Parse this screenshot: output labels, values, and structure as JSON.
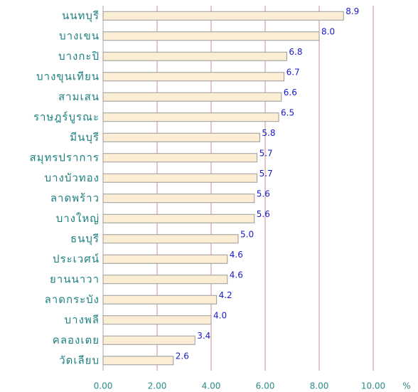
{
  "chart_data": {
    "type": "barh",
    "categories": [
      "นนทบุรี",
      "บางเขน",
      "บางกะปิ",
      "บางขุนเทียน",
      "สามเสน",
      "ราษฎร์บูรณะ",
      "มีนบุรี",
      "สมุทรปราการ",
      "บางบัวทอง",
      "ลาดพร้าว",
      "บางใหญ่",
      "ธนบุรี",
      "ประเวศน์",
      "ยานนาวา",
      "ลาดกระบัง",
      "บางพลี",
      "คลองเตย",
      "วัดเลียบ"
    ],
    "values": [
      8.9,
      8.0,
      6.8,
      6.7,
      6.6,
      6.5,
      5.8,
      5.7,
      5.7,
      5.6,
      5.6,
      5.0,
      4.6,
      4.6,
      4.2,
      4.0,
      3.4,
      2.6
    ],
    "value_labels": [
      "8.9",
      "8.0",
      "6.8",
      "6.7",
      "6.6",
      "6.5",
      "5.8",
      "5.7",
      "5.7",
      "5.6",
      "5.6",
      "5.0",
      "4.6",
      "4.6",
      "4.2",
      "4.0",
      "3.4",
      "2.6"
    ],
    "color": "#fbeed5",
    "xlabel": "%",
    "xlim": [
      0,
      10
    ],
    "xticks": [
      {
        "value": 0,
        "label": "0.00"
      },
      {
        "value": 2,
        "label": "2.00"
      },
      {
        "value": 4,
        "label": "4.00"
      },
      {
        "value": 6,
        "label": "6.00"
      },
      {
        "value": 8,
        "label": "8.00"
      },
      {
        "value": 10,
        "label": "10.00"
      }
    ],
    "grid": true
  }
}
